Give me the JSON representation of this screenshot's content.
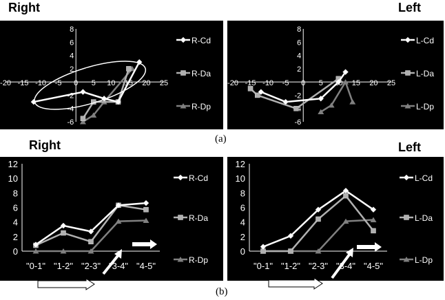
{
  "headings": {
    "top_right": "Right",
    "top_left": "Left",
    "bottom_right": "Right",
    "bottom_left": "Left"
  },
  "captions": {
    "a": "(a)",
    "b": "(b)"
  },
  "chart_data": [
    {
      "id": "a-right",
      "type": "scatter",
      "title": "",
      "xlim": [
        -20,
        25
      ],
      "ylim": [
        -6,
        8
      ],
      "xticks": [
        -20,
        -15,
        -10,
        -5,
        0,
        5,
        10,
        15,
        20,
        25
      ],
      "yticks": [
        -6,
        -4,
        -2,
        0,
        2,
        4,
        6,
        8
      ],
      "xtick_labels": [
        "-20",
        "-15",
        "-10",
        "-5",
        "0",
        "5",
        "10",
        "15",
        "20",
        "25"
      ],
      "ytick_labels": [
        "-6",
        "-4",
        "-2",
        "2",
        "4",
        "6",
        "8"
      ],
      "legend": "right",
      "annotation": "ellipse around points",
      "series": [
        {
          "name": "R-Cd",
          "marker": "diamond",
          "color": "#ffffff",
          "points": [
            [
              -12,
              -3
            ],
            [
              2,
              -1.5
            ],
            [
              8,
              -2.5
            ],
            [
              12,
              -3
            ],
            [
              18,
              3
            ]
          ]
        },
        {
          "name": "R-Da",
          "marker": "square",
          "color": "#b0b0b0",
          "points": [
            [
              2,
              -5.5
            ],
            [
              5,
              -3
            ],
            [
              12,
              -3
            ],
            [
              15,
              2
            ]
          ]
        },
        {
          "name": "R-Dp",
          "marker": "triangle",
          "color": "#808080",
          "points": [
            [
              2,
              -6
            ],
            [
              5,
              -5
            ],
            [
              8,
              -3
            ],
            [
              16,
              2
            ]
          ]
        }
      ]
    },
    {
      "id": "a-left",
      "type": "scatter",
      "title": "",
      "xlim": [
        -20,
        25
      ],
      "ylim": [
        -6,
        8
      ],
      "xticks": [
        -20,
        -15,
        -10,
        -5,
        0,
        5,
        10,
        15,
        20,
        25
      ],
      "yticks": [
        -6,
        -4,
        -2,
        0,
        2,
        4,
        6,
        8
      ],
      "xtick_labels": [
        "-20",
        "-15",
        "-10",
        "-5",
        "0",
        "5",
        "10",
        "15",
        "20",
        "25"
      ],
      "ytick_labels": [
        "-6",
        "-4",
        "-2",
        "2",
        "4",
        "6",
        "8"
      ],
      "legend": "right",
      "series": [
        {
          "name": "L-Cd",
          "marker": "diamond",
          "color": "#ffffff",
          "points": [
            [
              -12,
              -1.5
            ],
            [
              -5,
              -3
            ],
            [
              5,
              -2.5
            ],
            [
              10,
              0
            ],
            [
              12,
              1.5
            ]
          ]
        },
        {
          "name": "L-Da",
          "marker": "square",
          "color": "#b0b0b0",
          "points": [
            [
              -15,
              -1
            ],
            [
              -13,
              -2
            ],
            [
              -2,
              -4
            ],
            [
              10,
              0.5
            ]
          ]
        },
        {
          "name": "L-Dp",
          "marker": "triangle",
          "color": "#808080",
          "points": [
            [
              5,
              -4.5
            ],
            [
              8,
              -3.5
            ],
            [
              12,
              0
            ],
            [
              14,
              -3
            ]
          ]
        }
      ]
    },
    {
      "id": "b-right",
      "type": "line",
      "title": "",
      "categories": [
        "\"0-1\"",
        "\"1-2\"",
        "\"2-3\"",
        "\"3-4\"",
        "\"4-5\""
      ],
      "ylim": [
        0,
        12
      ],
      "yticks": [
        0,
        2,
        4,
        6,
        8,
        10,
        12
      ],
      "ytick_labels": [
        "0",
        "2",
        "4",
        "6",
        "8",
        "10",
        "12"
      ],
      "legend": "right",
      "series": [
        {
          "name": "R-Cd",
          "marker": "diamond",
          "color": "#ffffff",
          "values": [
            0.9,
            3.5,
            2.7,
            6.3,
            6.6
          ]
        },
        {
          "name": "R-Da",
          "marker": "square",
          "color": "#b0b0b0",
          "values": [
            0.8,
            2.5,
            1.3,
            6.3,
            5.7
          ]
        },
        {
          "name": "R-Dp",
          "marker": "triangle",
          "color": "#808080",
          "values": [
            0,
            0,
            0,
            4.1,
            4.2
          ]
        }
      ]
    },
    {
      "id": "b-left",
      "type": "line",
      "title": "",
      "categories": [
        "\"0-1\"",
        "\"1-2\"",
        "\"2-3\"",
        "\"3-4\"",
        "\"4-5\""
      ],
      "ylim": [
        0,
        12
      ],
      "yticks": [
        0,
        2,
        4,
        6,
        8,
        10,
        12
      ],
      "ytick_labels": [
        "0",
        "2",
        "4",
        "6",
        "8",
        "10",
        "12"
      ],
      "legend": "right",
      "series": [
        {
          "name": "L-Cd",
          "marker": "diamond",
          "color": "#ffffff",
          "values": [
            0.6,
            2.1,
            5.7,
            8.3,
            5.7
          ]
        },
        {
          "name": "L-Da",
          "marker": "square",
          "color": "#b0b0b0",
          "values": [
            0,
            0,
            4.4,
            7.6,
            2.8
          ]
        },
        {
          "name": "L-Dp",
          "marker": "triangle",
          "color": "#808080",
          "values": [
            0,
            0,
            0,
            4.1,
            4.3
          ]
        }
      ]
    }
  ]
}
